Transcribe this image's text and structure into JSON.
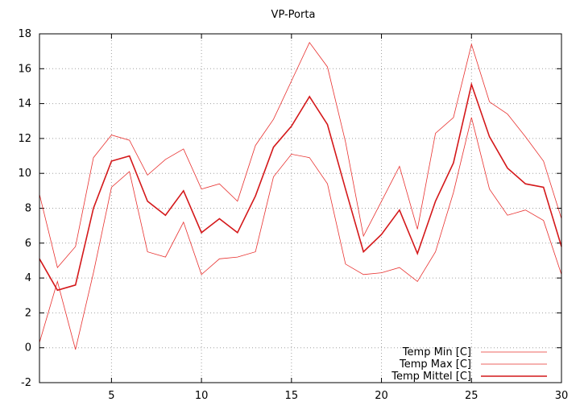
{
  "chart_data": {
    "type": "line",
    "title": "VP-Porta",
    "xlabel": "",
    "ylabel": "",
    "xlim": [
      1,
      30
    ],
    "ylim": [
      -2,
      18
    ],
    "x_ticks": [
      5,
      10,
      15,
      20,
      25,
      30
    ],
    "y_ticks": [
      -2,
      0,
      2,
      4,
      6,
      8,
      10,
      12,
      14,
      16,
      18
    ],
    "grid": true,
    "legend_position": "bottom-right",
    "x": [
      1,
      2,
      3,
      4,
      5,
      6,
      7,
      8,
      9,
      10,
      11,
      12,
      13,
      14,
      15,
      16,
      17,
      18,
      19,
      20,
      21,
      22,
      23,
      24,
      25,
      26,
      27,
      28,
      29,
      30
    ],
    "series": [
      {
        "name": "Temp Min [C]",
        "color": "#e8302e",
        "line_width": 0.8,
        "values": [
          0.3,
          3.8,
          -0.1,
          4.3,
          9.2,
          10.1,
          5.5,
          5.2,
          7.2,
          4.2,
          5.1,
          5.2,
          5.5,
          9.8,
          11.1,
          10.9,
          9.4,
          4.8,
          4.2,
          4.3,
          4.6,
          3.8,
          5.5,
          8.9,
          13.2,
          9.1,
          7.6,
          7.9,
          7.3,
          4.2
        ]
      },
      {
        "name": "Temp Max [C]",
        "color": "#e8302e",
        "line_width": 0.8,
        "values": [
          8.8,
          4.6,
          5.8,
          10.9,
          12.2,
          11.9,
          9.9,
          10.8,
          11.4,
          9.1,
          9.4,
          8.4,
          11.6,
          13.1,
          15.3,
          17.5,
          16.1,
          11.8,
          6.4,
          8.4,
          10.4,
          6.8,
          12.3,
          13.2,
          17.4,
          14.1,
          13.4,
          12.1,
          10.7,
          7.4
        ]
      },
      {
        "name": "Temp Mittel [C]",
        "color": "#d4181a",
        "line_width": 1.6,
        "values": [
          5.1,
          3.3,
          3.6,
          8.0,
          10.7,
          11.0,
          8.4,
          7.6,
          9.0,
          6.6,
          7.4,
          6.6,
          8.7,
          11.5,
          12.7,
          14.4,
          12.8,
          9.1,
          5.5,
          6.5,
          7.9,
          5.4,
          8.4,
          10.6,
          15.1,
          12.1,
          10.3,
          9.4,
          9.2,
          5.8
        ]
      }
    ]
  }
}
